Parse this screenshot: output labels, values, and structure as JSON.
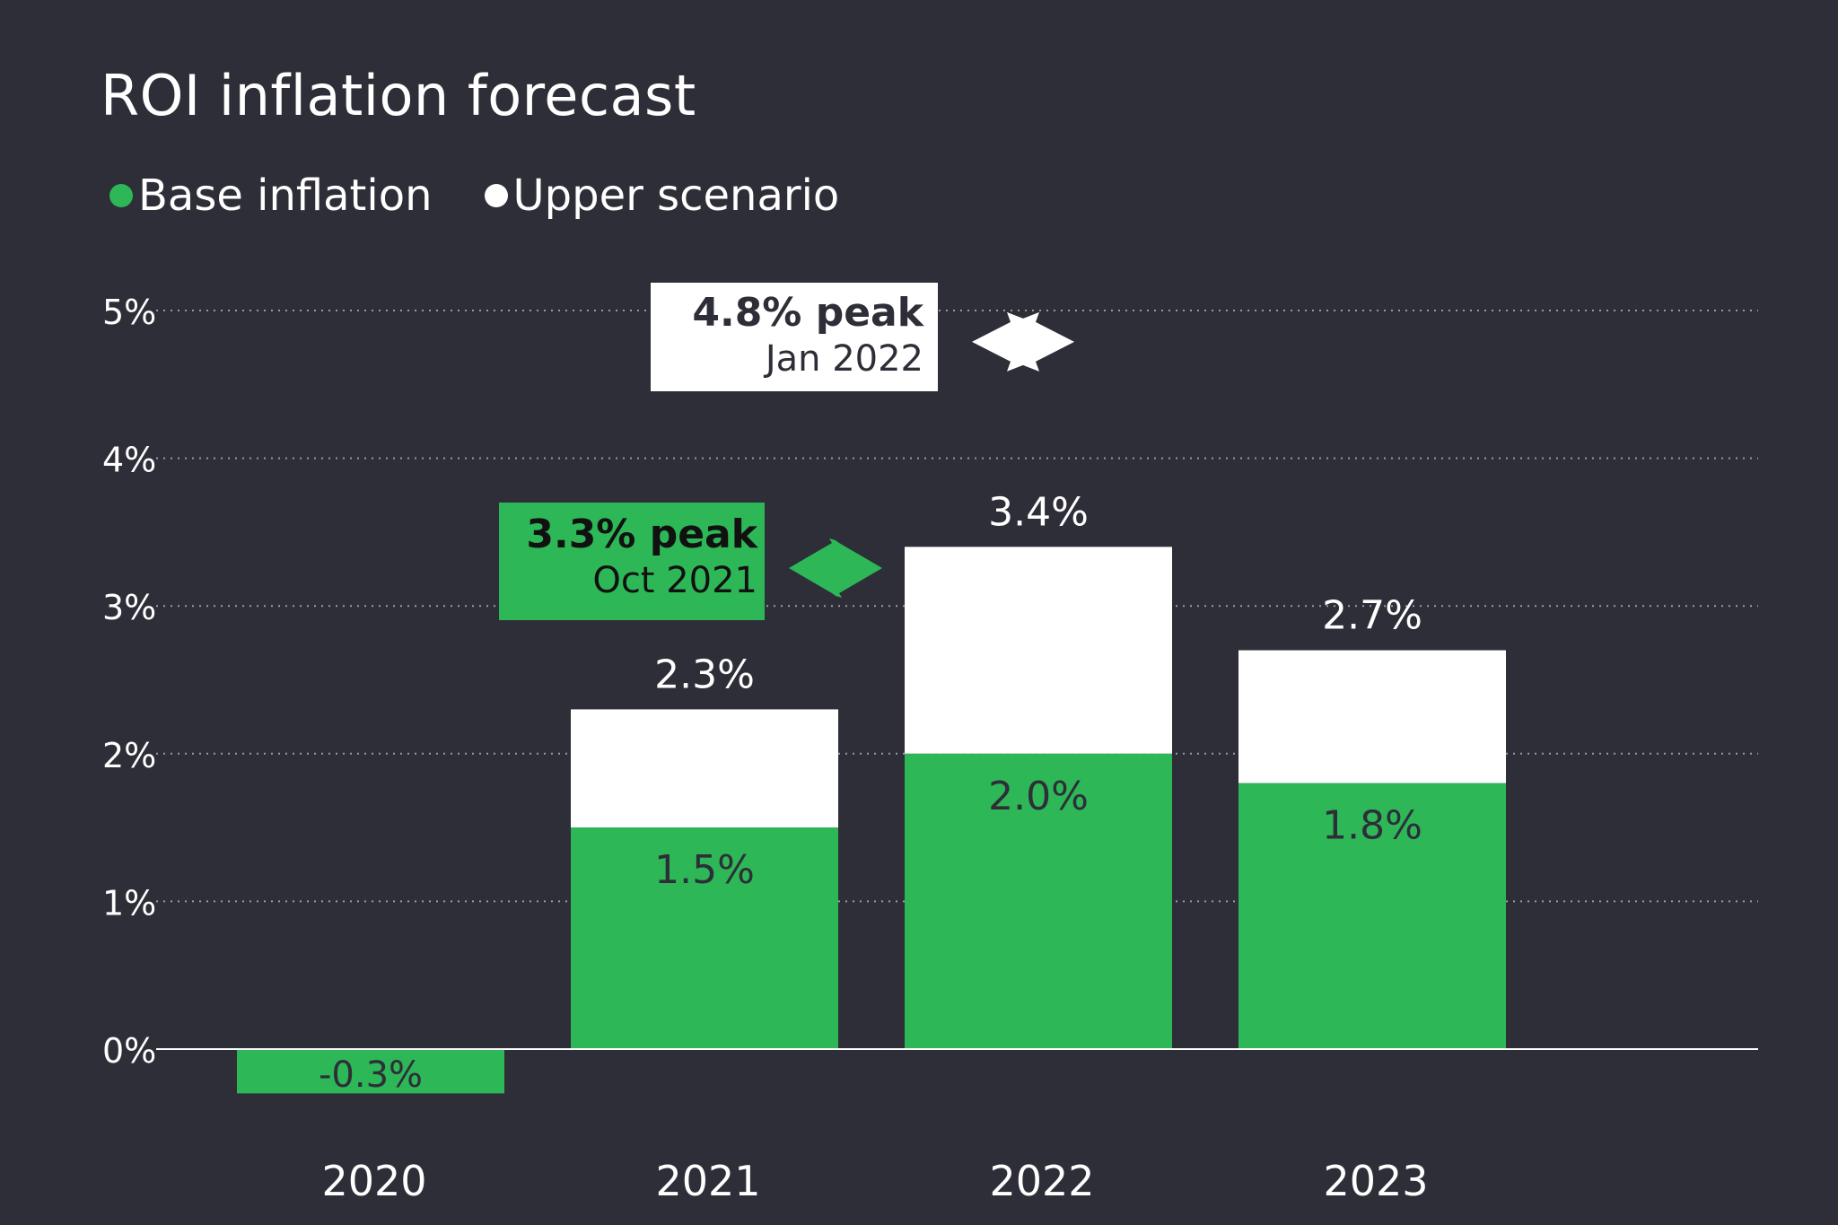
{
  "colors": {
    "background": "#2e2e38",
    "base": "#2db757",
    "upper": "#ffffff",
    "dark_text": "#2e2e38",
    "grid": "#9a9aa2"
  },
  "chart_data": {
    "type": "bar",
    "title": "ROI inflation forecast",
    "xlabel": "",
    "ylabel": "",
    "categories": [
      "2020",
      "2021",
      "2022",
      "2023"
    ],
    "series": [
      {
        "name": "Base inflation",
        "values": [
          -0.3,
          1.5,
          2.0,
          1.8
        ],
        "labels": [
          "-0.3%",
          "1.5%",
          "2.0%",
          "1.8%"
        ]
      },
      {
        "name": "Upper scenario",
        "values": [
          null,
          2.3,
          3.4,
          2.7
        ],
        "labels": [
          "",
          "2.3%",
          "3.4%",
          "2.7%"
        ]
      }
    ],
    "ylim": [
      -0.3,
      5
    ],
    "yticks": [
      0,
      1,
      2,
      3,
      4,
      5
    ],
    "ytick_labels": [
      "0%",
      "1%",
      "2%",
      "3%",
      "4%",
      "5%"
    ],
    "grid": true,
    "legend": {
      "placement": "top-left",
      "entries": [
        "Base inflation",
        "Upper scenario"
      ]
    },
    "annotations": [
      {
        "series": "Upper scenario",
        "value": 4.8,
        "headline": "4.8% peak",
        "date": "Jan 2022"
      },
      {
        "series": "Base inflation",
        "value": 3.3,
        "headline": "3.3% peak",
        "date": "Oct 2021"
      }
    ]
  }
}
